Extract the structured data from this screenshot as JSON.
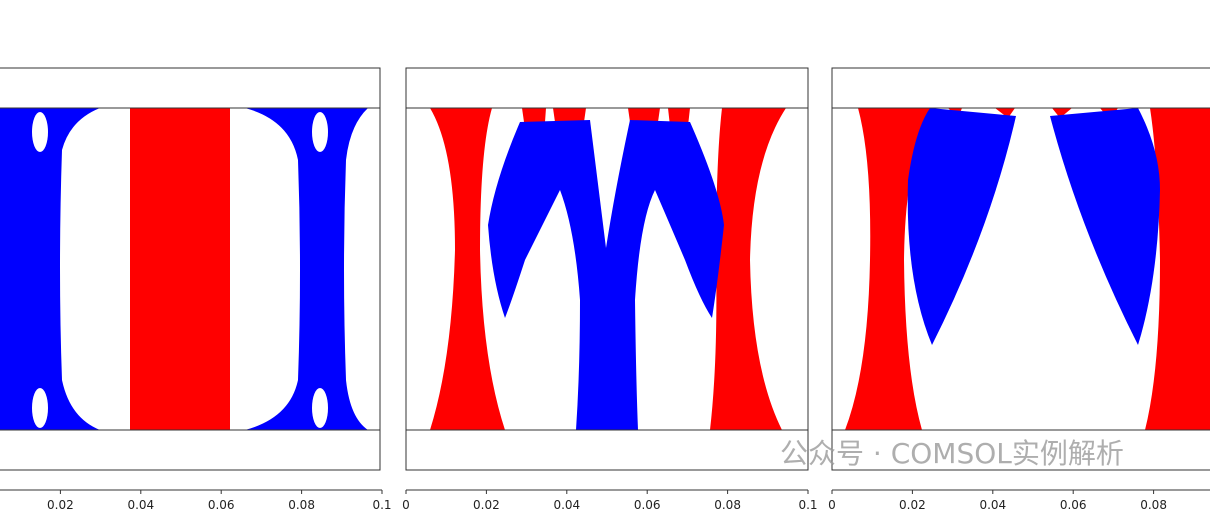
{
  "panels": [
    {
      "xlim": [
        0,
        0.1
      ],
      "xticks": [
        0.02,
        0.04,
        0.06,
        0.08,
        0.1
      ]
    },
    {
      "xlim": [
        0,
        0.1
      ],
      "xticks": [
        0,
        0.02,
        0.04,
        0.06,
        0.08,
        0.1
      ]
    },
    {
      "xlim": [
        0,
        0.1
      ],
      "xticks": [
        0,
        0.02,
        0.04,
        0.06,
        0.08
      ]
    }
  ],
  "watermark": "公众号 · COMSOL实例解析"
}
